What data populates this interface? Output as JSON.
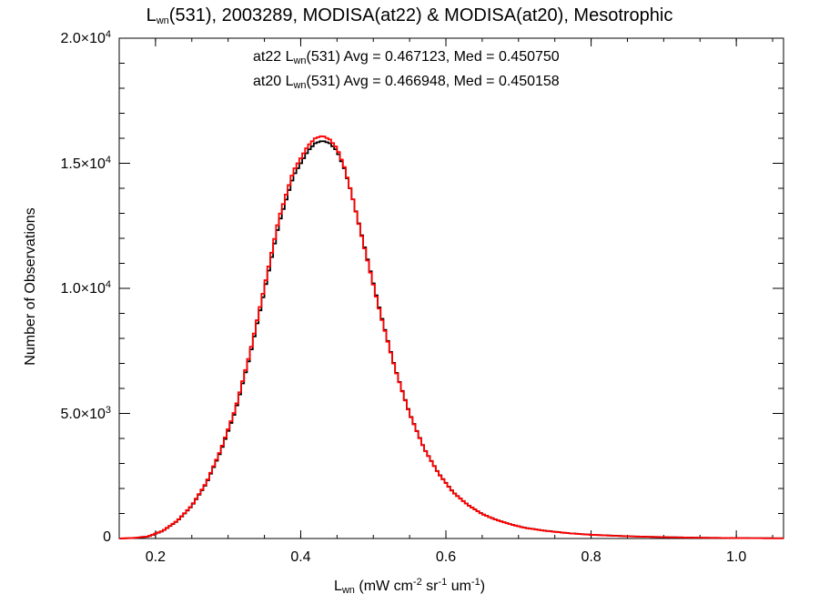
{
  "chart_data": {
    "type": "line",
    "step": true,
    "title": {
      "prefix": "L",
      "sub": "wn",
      "suffix": "(531), 2003289, MODISA(at22) & MODISA(at20), Mesotrophic"
    },
    "xlabel": {
      "prefix": "L",
      "sub": "wn",
      "units": "(mW cm",
      "units_exp1": "-2",
      "units_mid": " sr",
      "units_exp2": "-1",
      "units_end": " um",
      "units_exp3": "-1",
      "units_close": ")"
    },
    "ylabel": "Number of Observations",
    "xlim": [
      0.15,
      1.065
    ],
    "ylim": [
      0,
      20000
    ],
    "x_ticks": [
      "0.2",
      "0.4",
      "0.6",
      "0.8",
      "1.0"
    ],
    "x_tick_values": [
      0.2,
      0.4,
      0.6,
      0.8,
      1.0
    ],
    "y_ticks": [
      {
        "value": 0,
        "mantissa": "0",
        "exp": ""
      },
      {
        "value": 5000,
        "mantissa": "5.0×10",
        "exp": "3"
      },
      {
        "value": 10000,
        "mantissa": "1.0×10",
        "exp": "4"
      },
      {
        "value": 15000,
        "mantissa": "1.5×10",
        "exp": "4"
      },
      {
        "value": 20000,
        "mantissa": "2.0×10",
        "exp": "4"
      }
    ],
    "grid": false,
    "legend_placement": "top-center",
    "legend": [
      {
        "name": "at22",
        "prefix": "at22 L",
        "sub": "wn",
        "text": "(531) Avg = 0.467123, Med = 0.450750",
        "color": "#000000"
      },
      {
        "name": "at20",
        "prefix": "at20 L",
        "sub": "wn",
        "text": "(531) Avg = 0.466948, Med = 0.450158",
        "color": "#ff0000"
      }
    ],
    "series": [
      {
        "name": "at22",
        "color": "#000000",
        "x": [
          0.15,
          0.17,
          0.19,
          0.21,
          0.23,
          0.25,
          0.27,
          0.29,
          0.31,
          0.33,
          0.35,
          0.37,
          0.39,
          0.41,
          0.42,
          0.43,
          0.44,
          0.45,
          0.46,
          0.47,
          0.49,
          0.51,
          0.53,
          0.55,
          0.57,
          0.59,
          0.61,
          0.63,
          0.65,
          0.67,
          0.69,
          0.71,
          0.74,
          0.77,
          0.8,
          0.85,
          0.9,
          0.95,
          1.0,
          1.065
        ],
        "values": [
          0,
          20,
          80,
          300,
          700,
          1300,
          2200,
          3500,
          5100,
          7300,
          9900,
          12600,
          14500,
          15500,
          15800,
          15900,
          15800,
          15500,
          14800,
          13800,
          11400,
          9000,
          6800,
          5000,
          3600,
          2600,
          1850,
          1350,
          980,
          740,
          560,
          420,
          300,
          210,
          150,
          90,
          55,
          32,
          18,
          8
        ]
      },
      {
        "name": "at20",
        "color": "#ff0000",
        "x": [
          0.15,
          0.17,
          0.19,
          0.21,
          0.23,
          0.25,
          0.27,
          0.29,
          0.31,
          0.33,
          0.35,
          0.37,
          0.39,
          0.41,
          0.42,
          0.43,
          0.44,
          0.45,
          0.46,
          0.47,
          0.49,
          0.51,
          0.53,
          0.55,
          0.57,
          0.59,
          0.61,
          0.63,
          0.65,
          0.67,
          0.69,
          0.71,
          0.74,
          0.77,
          0.8,
          0.85,
          0.9,
          0.95,
          1.0,
          1.065
        ],
        "values": [
          0,
          22,
          85,
          310,
          710,
          1320,
          2230,
          3550,
          5180,
          7400,
          10050,
          12800,
          14700,
          15700,
          16000,
          16100,
          15950,
          15600,
          14850,
          13800,
          11350,
          8950,
          6780,
          4980,
          3590,
          2590,
          1840,
          1345,
          975,
          738,
          558,
          418,
          298,
          208,
          148,
          88,
          54,
          31,
          17,
          8
        ]
      }
    ]
  }
}
